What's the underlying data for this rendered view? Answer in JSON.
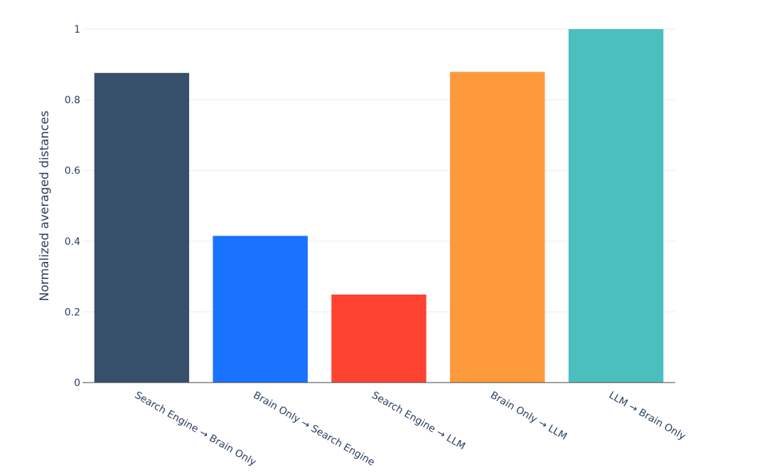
{
  "chart_data": {
    "type": "bar",
    "title": "",
    "xlabel": "",
    "ylabel": "Normalized averaged distances",
    "categories": [
      "Search Engine → Brain Only",
      "Brain Only → Search Engine",
      "Search Engine → LLM",
      "Brain Only → LLM",
      "LLM → Brain Only"
    ],
    "values": [
      0.876,
      0.415,
      0.249,
      0.879,
      1.0
    ],
    "colors": [
      "#36506b",
      "#1a73ff",
      "#ff4333",
      "#ff9a3c",
      "#4bbfbd"
    ],
    "ylim": [
      0,
      1
    ],
    "yticks": [
      0,
      0.2,
      0.4,
      0.6,
      0.8,
      1
    ],
    "ytick_labels": [
      "0",
      "0.2",
      "0.4",
      "0.6",
      "0.8",
      "1"
    ],
    "grid": true
  }
}
